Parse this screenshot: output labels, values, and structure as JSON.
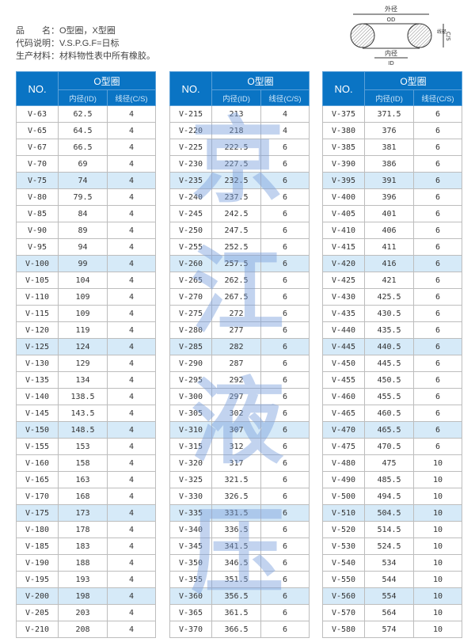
{
  "info": {
    "product_label": "品　　名：",
    "product_value": "O型圈，X型圈",
    "code_label": "代码说明：",
    "code_value": "V.S.P.G.F=日标",
    "material_label": "生产材料：",
    "material_value": "材料物性表中所有橡胶。"
  },
  "diagram": {
    "od_cn": "外径",
    "od": "OD",
    "id_cn": "内径",
    "id": "ID",
    "cs_cn": "线径",
    "cs": "C/S"
  },
  "table_headers": {
    "no": "NO.",
    "group": "O型圈",
    "id": "内径(ID)",
    "cs": "线径(C/S)"
  },
  "colors": {
    "header": "#0a74c4",
    "highlight_row": "#d6eaf8",
    "watermark": "#7aa0dc"
  },
  "watermark": "京江液压",
  "tables": [
    [
      [
        "V-63",
        "62.5",
        "4"
      ],
      [
        "V-65",
        "64.5",
        "4"
      ],
      [
        "V-67",
        "66.5",
        "4"
      ],
      [
        "V-70",
        "69",
        "4"
      ],
      [
        "V-75",
        "74",
        "4"
      ],
      [
        "V-80",
        "79.5",
        "4"
      ],
      [
        "V-85",
        "84",
        "4"
      ],
      [
        "V-90",
        "89",
        "4"
      ],
      [
        "V-95",
        "94",
        "4"
      ],
      [
        "V-100",
        "99",
        "4"
      ],
      [
        "V-105",
        "104",
        "4"
      ],
      [
        "V-110",
        "109",
        "4"
      ],
      [
        "V-115",
        "109",
        "4"
      ],
      [
        "V-120",
        "119",
        "4"
      ],
      [
        "V-125",
        "124",
        "4"
      ],
      [
        "V-130",
        "129",
        "4"
      ],
      [
        "V-135",
        "134",
        "4"
      ],
      [
        "V-140",
        "138.5",
        "4"
      ],
      [
        "V-145",
        "143.5",
        "4"
      ],
      [
        "V-150",
        "148.5",
        "4"
      ],
      [
        "V-155",
        "153",
        "4"
      ],
      [
        "V-160",
        "158",
        "4"
      ],
      [
        "V-165",
        "163",
        "4"
      ],
      [
        "V-170",
        "168",
        "4"
      ],
      [
        "V-175",
        "173",
        "4"
      ],
      [
        "V-180",
        "178",
        "4"
      ],
      [
        "V-185",
        "183",
        "4"
      ],
      [
        "V-190",
        "188",
        "4"
      ],
      [
        "V-195",
        "193",
        "4"
      ],
      [
        "V-200",
        "198",
        "4"
      ],
      [
        "V-205",
        "203",
        "4"
      ],
      [
        "V-210",
        "208",
        "4"
      ]
    ],
    [
      [
        "V-215",
        "213",
        "4"
      ],
      [
        "V-220",
        "218",
        "4"
      ],
      [
        "V-225",
        "222.5",
        "6"
      ],
      [
        "V-230",
        "227.5",
        "6"
      ],
      [
        "V-235",
        "232.5",
        "6"
      ],
      [
        "V-240",
        "237.5",
        "6"
      ],
      [
        "V-245",
        "242.5",
        "6"
      ],
      [
        "V-250",
        "247.5",
        "6"
      ],
      [
        "V-255",
        "252.5",
        "6"
      ],
      [
        "V-260",
        "257.5",
        "6"
      ],
      [
        "V-265",
        "262.5",
        "6"
      ],
      [
        "V-270",
        "267.5",
        "6"
      ],
      [
        "V-275",
        "272",
        "6"
      ],
      [
        "V-280",
        "277",
        "6"
      ],
      [
        "V-285",
        "282",
        "6"
      ],
      [
        "V-290",
        "287",
        "6"
      ],
      [
        "V-295",
        "292",
        "6"
      ],
      [
        "V-300",
        "297",
        "6"
      ],
      [
        "V-305",
        "302",
        "6"
      ],
      [
        "V-310",
        "307",
        "6"
      ],
      [
        "V-315",
        "312",
        "6"
      ],
      [
        "V-320",
        "317",
        "6"
      ],
      [
        "V-325",
        "321.5",
        "6"
      ],
      [
        "V-330",
        "326.5",
        "6"
      ],
      [
        "V-335",
        "331.5",
        "6"
      ],
      [
        "V-340",
        "336.5",
        "6"
      ],
      [
        "V-345",
        "341.5",
        "6"
      ],
      [
        "V-350",
        "346.5",
        "6"
      ],
      [
        "V-355",
        "351.5",
        "6"
      ],
      [
        "V-360",
        "356.5",
        "6"
      ],
      [
        "V-365",
        "361.5",
        "6"
      ],
      [
        "V-370",
        "366.5",
        "6"
      ]
    ],
    [
      [
        "V-375",
        "371.5",
        "6"
      ],
      [
        "V-380",
        "376",
        "6"
      ],
      [
        "V-385",
        "381",
        "6"
      ],
      [
        "V-390",
        "386",
        "6"
      ],
      [
        "V-395",
        "391",
        "6"
      ],
      [
        "V-400",
        "396",
        "6"
      ],
      [
        "V-405",
        "401",
        "6"
      ],
      [
        "V-410",
        "406",
        "6"
      ],
      [
        "V-415",
        "411",
        "6"
      ],
      [
        "V-420",
        "416",
        "6"
      ],
      [
        "V-425",
        "421",
        "6"
      ],
      [
        "V-430",
        "425.5",
        "6"
      ],
      [
        "V-435",
        "430.5",
        "6"
      ],
      [
        "V-440",
        "435.5",
        "6"
      ],
      [
        "V-445",
        "440.5",
        "6"
      ],
      [
        "V-450",
        "445.5",
        "6"
      ],
      [
        "V-455",
        "450.5",
        "6"
      ],
      [
        "V-460",
        "455.5",
        "6"
      ],
      [
        "V-465",
        "460.5",
        "6"
      ],
      [
        "V-470",
        "465.5",
        "6"
      ],
      [
        "V-475",
        "470.5",
        "6"
      ],
      [
        "V-480",
        "475",
        "10"
      ],
      [
        "V-490",
        "485.5",
        "10"
      ],
      [
        "V-500",
        "494.5",
        "10"
      ],
      [
        "V-510",
        "504.5",
        "10"
      ],
      [
        "V-520",
        "514.5",
        "10"
      ],
      [
        "V-530",
        "524.5",
        "10"
      ],
      [
        "V-540",
        "534",
        "10"
      ],
      [
        "V-550",
        "544",
        "10"
      ],
      [
        "V-560",
        "554",
        "10"
      ],
      [
        "V-570",
        "564",
        "10"
      ],
      [
        "V-580",
        "574",
        "10"
      ]
    ]
  ]
}
